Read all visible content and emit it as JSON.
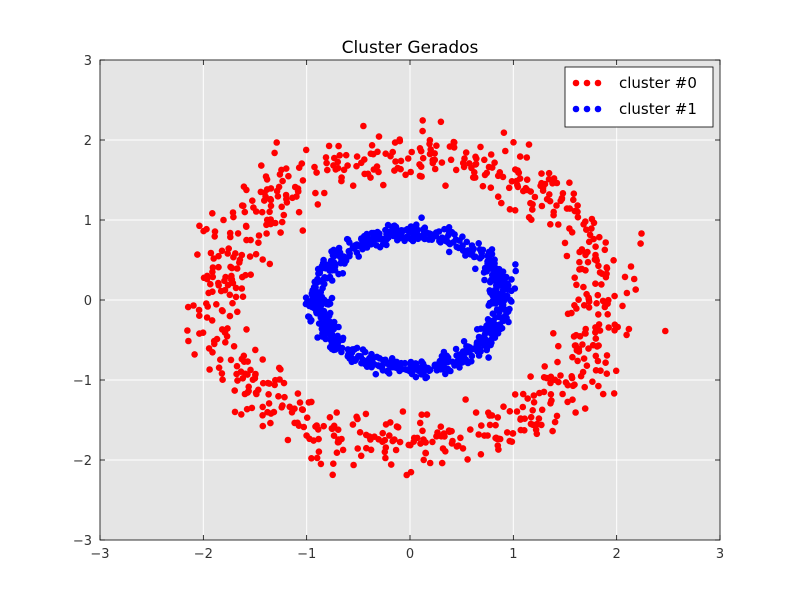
{
  "chart_data": {
    "type": "scatter",
    "title": "Cluster Gerados",
    "xlabel": "",
    "ylabel": "",
    "xlim": [
      -3,
      3
    ],
    "ylim": [
      -3,
      3
    ],
    "xticks": [
      -3,
      -2,
      -1,
      0,
      1,
      2,
      3
    ],
    "yticks": [
      -3,
      -2,
      -1,
      0,
      1,
      2,
      3
    ],
    "grid": true,
    "legend_position": "top-right",
    "background_color": "#e5e5e5",
    "series": [
      {
        "name": "cluster #0",
        "color": "#ff0000",
        "shape": "ring",
        "center": [
          0,
          0
        ],
        "radius_x": 1.87,
        "radius_y": 1.83,
        "spread": 0.09,
        "point_count": 700,
        "seed": 7
      },
      {
        "name": "cluster #1",
        "color": "#0000ff",
        "shape": "ring",
        "center": [
          0,
          0
        ],
        "radius_x": 0.9,
        "radius_y": 0.85,
        "spread": 0.07,
        "point_count": 700,
        "seed": 11
      }
    ]
  }
}
